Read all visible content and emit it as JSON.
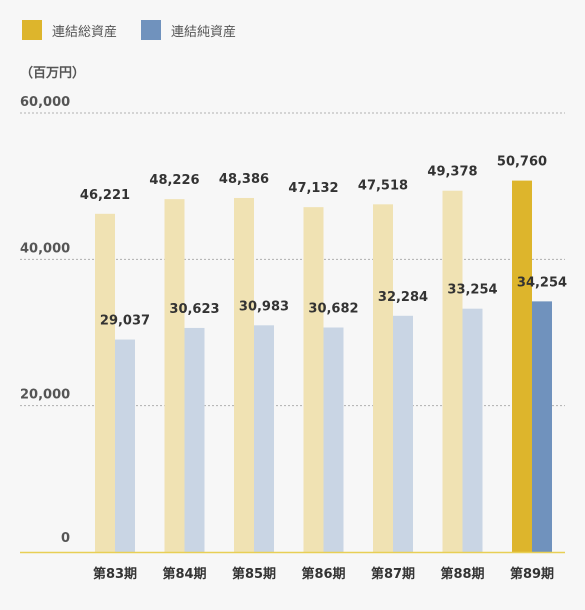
{
  "legend": [
    {
      "label": "連結総資産",
      "color": "#ddb52c"
    },
    {
      "label": "連結純資産",
      "color": "#7092bd"
    }
  ],
  "unit_label": "（百万円）",
  "chart_data": {
    "type": "bar",
    "categories": [
      "第83期",
      "第84期",
      "第85期",
      "第86期",
      "第87期",
      "第88期",
      "第89期"
    ],
    "series": [
      {
        "name": "連結総資産",
        "values": [
          46221,
          48226,
          48386,
          47132,
          47518,
          49378,
          50760
        ],
        "color": "#ddb52c",
        "faded_color": "#f0e2b3"
      },
      {
        "name": "連結純資産",
        "values": [
          29037,
          30623,
          30983,
          30682,
          32284,
          33254,
          34254
        ],
        "color": "#7092bd",
        "faded_color": "#c9d5e4"
      }
    ],
    "value_labels": [
      [
        "46,221",
        "48,226",
        "48,386",
        "47,132",
        "47,518",
        "49,378",
        "50,760"
      ],
      [
        "29,037",
        "30,623",
        "30,983",
        "30,682",
        "32,284",
        "33,254",
        "34,254"
      ]
    ],
    "y_ticks": [
      0,
      20000,
      40000,
      60000
    ],
    "y_tick_labels": [
      "0",
      "20,000",
      "40,000",
      "60,000"
    ],
    "ylim": [
      0,
      60000
    ],
    "highlight_index": 6,
    "grid": true,
    "legend_position": "top-left"
  }
}
